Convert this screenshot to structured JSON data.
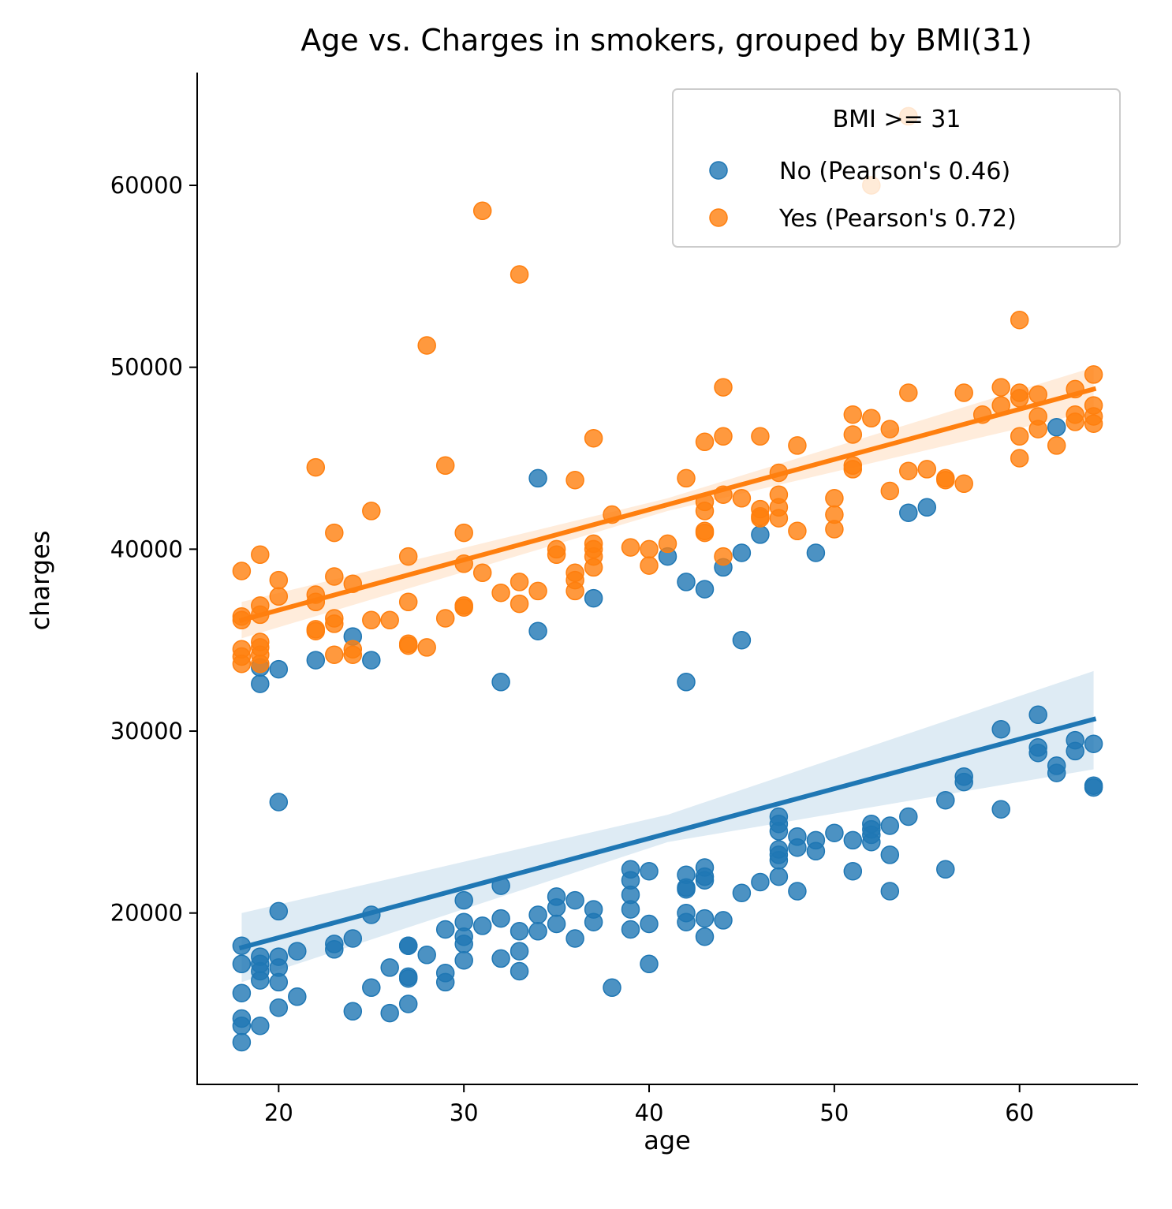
{
  "chart_data": {
    "type": "scatter",
    "title": "Age vs. Charges in smokers, grouped by BMI(31)",
    "xlabel": "age",
    "ylabel": "charges",
    "xlim": [
      15.6,
      66.4
    ],
    "ylim": [
      10580,
      66200
    ],
    "xticks": [
      "20",
      "30",
      "40",
      "50",
      "60"
    ],
    "yticks": [
      "20000",
      "30000",
      "40000",
      "50000",
      "60000"
    ],
    "grid": false,
    "legend": {
      "title": "BMI >= 31",
      "position": "top-right",
      "entries": [
        "No (Pearson's 0.46)",
        "Yes (Pearson's 0.72)"
      ]
    },
    "series": [
      {
        "name": "No (Pearson's 0.46)",
        "color": "#1f77b4",
        "fit": {
          "x": [
            18,
            64
          ],
          "y": [
            18100,
            30650
          ]
        },
        "ci_band": {
          "x": [
            18,
            41,
            64
          ],
          "lower": [
            16200,
            23900,
            27900
          ],
          "upper": [
            20000,
            25400,
            33300
          ]
        },
        "points": [
          [
            18,
            18200
          ],
          [
            18,
            17200
          ],
          [
            18,
            15600
          ],
          [
            18,
            14200
          ],
          [
            18,
            13800
          ],
          [
            18,
            12900
          ],
          [
            19,
            17600
          ],
          [
            19,
            17200
          ],
          [
            19,
            16800
          ],
          [
            19,
            16300
          ],
          [
            19,
            13800
          ],
          [
            19,
            33500
          ],
          [
            19,
            32600
          ],
          [
            20,
            17600
          ],
          [
            20,
            17000
          ],
          [
            20,
            16200
          ],
          [
            20,
            14800
          ],
          [
            20,
            20100
          ],
          [
            20,
            26100
          ],
          [
            20,
            33400
          ],
          [
            21,
            17900
          ],
          [
            21,
            15400
          ],
          [
            22,
            33900
          ],
          [
            23,
            18300
          ],
          [
            23,
            18000
          ],
          [
            24,
            18600
          ],
          [
            24,
            14600
          ],
          [
            24,
            35200
          ],
          [
            25,
            19900
          ],
          [
            25,
            15900
          ],
          [
            25,
            33900
          ],
          [
            26,
            17000
          ],
          [
            26,
            14500
          ],
          [
            27,
            18200
          ],
          [
            27,
            18200
          ],
          [
            27,
            16500
          ],
          [
            27,
            16400
          ],
          [
            27,
            15000
          ],
          [
            28,
            17700
          ],
          [
            29,
            19100
          ],
          [
            29,
            16700
          ],
          [
            29,
            16200
          ],
          [
            30,
            20700
          ],
          [
            30,
            19500
          ],
          [
            30,
            18700
          ],
          [
            30,
            18300
          ],
          [
            30,
            17400
          ],
          [
            31,
            19300
          ],
          [
            32,
            21500
          ],
          [
            32,
            19700
          ],
          [
            32,
            17500
          ],
          [
            32,
            32700
          ],
          [
            33,
            19000
          ],
          [
            33,
            17900
          ],
          [
            33,
            16800
          ],
          [
            34,
            19900
          ],
          [
            34,
            19000
          ],
          [
            34,
            35500
          ],
          [
            34,
            43900
          ],
          [
            35,
            20900
          ],
          [
            35,
            20300
          ],
          [
            35,
            19400
          ],
          [
            36,
            20700
          ],
          [
            36,
            18600
          ],
          [
            37,
            20200
          ],
          [
            37,
            19500
          ],
          [
            37,
            37300
          ],
          [
            38,
            15900
          ],
          [
            39,
            22400
          ],
          [
            39,
            21800
          ],
          [
            39,
            21000
          ],
          [
            39,
            20200
          ],
          [
            39,
            19100
          ],
          [
            40,
            22300
          ],
          [
            40,
            19400
          ],
          [
            40,
            17200
          ],
          [
            41,
            39600
          ],
          [
            42,
            22100
          ],
          [
            42,
            21400
          ],
          [
            42,
            21300
          ],
          [
            42,
            20000
          ],
          [
            42,
            19500
          ],
          [
            42,
            38200
          ],
          [
            42,
            32700
          ],
          [
            43,
            22500
          ],
          [
            43,
            22000
          ],
          [
            43,
            21800
          ],
          [
            43,
            19700
          ],
          [
            43,
            18700
          ],
          [
            43,
            37800
          ],
          [
            44,
            19600
          ],
          [
            44,
            39000
          ],
          [
            45,
            21100
          ],
          [
            45,
            39800
          ],
          [
            45,
            35000
          ],
          [
            46,
            21700
          ],
          [
            46,
            40800
          ],
          [
            47,
            25300
          ],
          [
            47,
            24900
          ],
          [
            47,
            24500
          ],
          [
            47,
            23500
          ],
          [
            47,
            23200
          ],
          [
            47,
            22900
          ],
          [
            47,
            22000
          ],
          [
            48,
            24200
          ],
          [
            48,
            23600
          ],
          [
            48,
            21200
          ],
          [
            49,
            24000
          ],
          [
            49,
            23400
          ],
          [
            49,
            39800
          ],
          [
            50,
            24400
          ],
          [
            51,
            24000
          ],
          [
            51,
            22300
          ],
          [
            52,
            24900
          ],
          [
            52,
            24600
          ],
          [
            52,
            24300
          ],
          [
            52,
            23900
          ],
          [
            53,
            24800
          ],
          [
            53,
            23200
          ],
          [
            53,
            21200
          ],
          [
            54,
            25300
          ],
          [
            54,
            42000
          ],
          [
            55,
            42300
          ],
          [
            56,
            26200
          ],
          [
            56,
            22400
          ],
          [
            57,
            27500
          ],
          [
            57,
            27200
          ],
          [
            59,
            30100
          ],
          [
            59,
            25700
          ],
          [
            61,
            30900
          ],
          [
            61,
            29100
          ],
          [
            61,
            28800
          ],
          [
            62,
            28100
          ],
          [
            62,
            27700
          ],
          [
            62,
            46700
          ],
          [
            63,
            29500
          ],
          [
            63,
            28900
          ],
          [
            64,
            29300
          ],
          [
            64,
            27000
          ],
          [
            64,
            26900
          ]
        ]
      },
      {
        "name": "Yes (Pearson's 0.72)",
        "color": "#ff7f0e",
        "fit": {
          "x": [
            18,
            64
          ],
          "y": [
            36100,
            48800
          ]
        },
        "ci_band": {
          "x": [
            18,
            41,
            64
          ],
          "lower": [
            35100,
            42100,
            47600
          ],
          "upper": [
            37100,
            42800,
            50000
          ]
        },
        "points": [
          [
            18,
            38800
          ],
          [
            18,
            36300
          ],
          [
            18,
            36100
          ],
          [
            18,
            34500
          ],
          [
            18,
            34100
          ],
          [
            18,
            33700
          ],
          [
            19,
            39700
          ],
          [
            19,
            36900
          ],
          [
            19,
            36400
          ],
          [
            19,
            34900
          ],
          [
            19,
            34600
          ],
          [
            19,
            34200
          ],
          [
            19,
            33700
          ],
          [
            20,
            38300
          ],
          [
            20,
            37400
          ],
          [
            22,
            44500
          ],
          [
            22,
            37500
          ],
          [
            22,
            37100
          ],
          [
            22,
            35600
          ],
          [
            22,
            35500
          ],
          [
            23,
            40900
          ],
          [
            23,
            38500
          ],
          [
            23,
            36200
          ],
          [
            23,
            35900
          ],
          [
            23,
            34200
          ],
          [
            24,
            38100
          ],
          [
            24,
            34500
          ],
          [
            24,
            34200
          ],
          [
            25,
            42100
          ],
          [
            25,
            36100
          ],
          [
            26,
            36100
          ],
          [
            27,
            39600
          ],
          [
            27,
            37100
          ],
          [
            27,
            34800
          ],
          [
            27,
            34700
          ],
          [
            28,
            51200
          ],
          [
            28,
            34600
          ],
          [
            29,
            44600
          ],
          [
            29,
            36200
          ],
          [
            30,
            40900
          ],
          [
            30,
            39200
          ],
          [
            30,
            36900
          ],
          [
            30,
            36800
          ],
          [
            31,
            58600
          ],
          [
            31,
            38700
          ],
          [
            32,
            37600
          ],
          [
            33,
            55100
          ],
          [
            33,
            38200
          ],
          [
            33,
            37000
          ],
          [
            34,
            37700
          ],
          [
            35,
            40000
          ],
          [
            35,
            39700
          ],
          [
            36,
            43800
          ],
          [
            36,
            38700
          ],
          [
            36,
            38300
          ],
          [
            36,
            37700
          ],
          [
            37,
            46100
          ],
          [
            37,
            40300
          ],
          [
            37,
            40000
          ],
          [
            37,
            39600
          ],
          [
            37,
            39000
          ],
          [
            38,
            41900
          ],
          [
            39,
            40100
          ],
          [
            40,
            40000
          ],
          [
            40,
            39100
          ],
          [
            41,
            40300
          ],
          [
            42,
            43900
          ],
          [
            43,
            45900
          ],
          [
            43,
            42600
          ],
          [
            43,
            42100
          ],
          [
            43,
            41000
          ],
          [
            43,
            40900
          ],
          [
            44,
            48900
          ],
          [
            44,
            46200
          ],
          [
            44,
            43000
          ],
          [
            44,
            39600
          ],
          [
            45,
            42800
          ],
          [
            46,
            46200
          ],
          [
            46,
            42200
          ],
          [
            46,
            41800
          ],
          [
            46,
            41700
          ],
          [
            47,
            44200
          ],
          [
            47,
            43000
          ],
          [
            47,
            42300
          ],
          [
            47,
            41700
          ],
          [
            48,
            45700
          ],
          [
            48,
            41000
          ],
          [
            50,
            42800
          ],
          [
            50,
            41900
          ],
          [
            50,
            41100
          ],
          [
            51,
            47400
          ],
          [
            51,
            46300
          ],
          [
            51,
            44600
          ],
          [
            51,
            44400
          ],
          [
            52,
            47200
          ],
          [
            52,
            60000
          ],
          [
            53,
            46600
          ],
          [
            53,
            43200
          ],
          [
            54,
            48600
          ],
          [
            54,
            44300
          ],
          [
            54,
            63800
          ],
          [
            55,
            44400
          ],
          [
            56,
            43900
          ],
          [
            56,
            43800
          ],
          [
            57,
            48600
          ],
          [
            57,
            43600
          ],
          [
            58,
            47400
          ],
          [
            59,
            48900
          ],
          [
            59,
            47900
          ],
          [
            60,
            52600
          ],
          [
            60,
            48600
          ],
          [
            60,
            48300
          ],
          [
            60,
            46200
          ],
          [
            60,
            45000
          ],
          [
            61,
            48500
          ],
          [
            61,
            47300
          ],
          [
            61,
            46600
          ],
          [
            62,
            45700
          ],
          [
            63,
            48800
          ],
          [
            63,
            47400
          ],
          [
            63,
            47000
          ],
          [
            64,
            49600
          ],
          [
            64,
            47900
          ],
          [
            64,
            47300
          ],
          [
            64,
            46900
          ]
        ]
      }
    ]
  }
}
